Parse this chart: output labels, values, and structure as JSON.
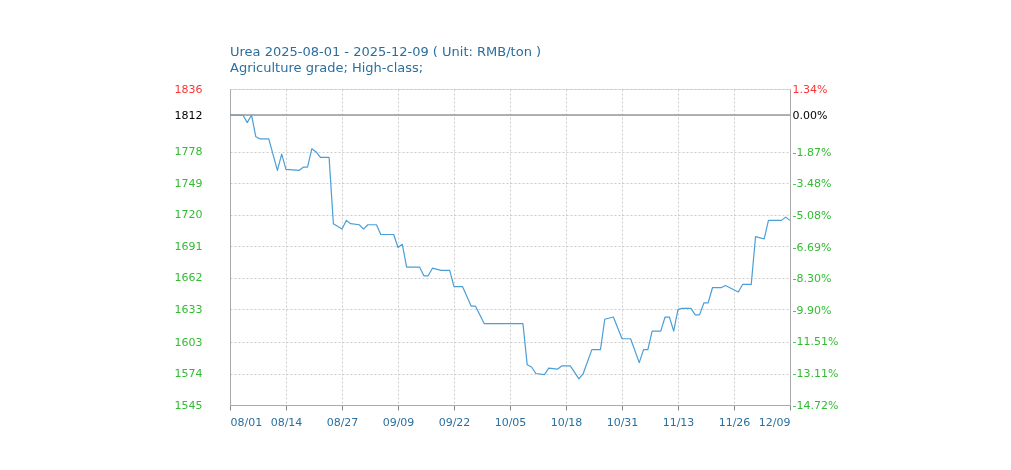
{
  "chart_data": {
    "type": "line",
    "title": "Urea 2025-08-01 - 2025-12-09    ( Unit: RMB/ton )",
    "subtitle": "Agriculture grade; High-class;",
    "x": [
      "2025-08-01",
      "2025-08-04",
      "2025-08-05",
      "2025-08-06",
      "2025-08-07",
      "2025-08-08",
      "2025-08-10",
      "2025-08-12",
      "2025-08-13",
      "2025-08-14",
      "2025-08-17",
      "2025-08-18",
      "2025-08-19",
      "2025-08-20",
      "2025-08-21",
      "2025-08-22",
      "2025-08-24",
      "2025-08-25",
      "2025-08-27",
      "2025-08-28",
      "2025-08-29",
      "2025-08-31",
      "2025-09-01",
      "2025-09-02",
      "2025-09-04",
      "2025-09-05",
      "2025-09-08",
      "2025-09-09",
      "2025-09-10",
      "2025-09-11",
      "2025-09-14",
      "2025-09-15",
      "2025-09-16",
      "2025-09-17",
      "2025-09-19",
      "2025-09-21",
      "2025-09-22",
      "2025-09-24",
      "2025-09-26",
      "2025-09-27",
      "2025-09-29",
      "2025-10-08",
      "2025-10-09",
      "2025-10-10",
      "2025-10-11",
      "2025-10-13",
      "2025-10-14",
      "2025-10-16",
      "2025-10-17",
      "2025-10-19",
      "2025-10-21",
      "2025-10-22",
      "2025-10-24",
      "2025-10-26",
      "2025-10-27",
      "2025-10-29",
      "2025-10-31",
      "2025-11-02",
      "2025-11-04",
      "2025-11-05",
      "2025-11-06",
      "2025-11-07",
      "2025-11-09",
      "2025-11-10",
      "2025-11-11",
      "2025-11-12",
      "2025-11-13",
      "2025-11-14",
      "2025-11-16",
      "2025-11-17",
      "2025-11-18",
      "2025-11-19",
      "2025-11-20",
      "2025-11-21",
      "2025-11-23",
      "2025-11-24",
      "2025-11-27",
      "2025-11-28",
      "2025-11-30",
      "2025-12-01",
      "2025-12-03",
      "2025-12-04",
      "2025-12-07",
      "2025-12-08",
      "2025-12-09"
    ],
    "series": [
      {
        "color": "#4a9fd8",
        "values": [
          1812,
          1812,
          1805,
          1812,
          1792,
          1790,
          1790,
          1761,
          1776,
          1762,
          1761,
          1764,
          1764,
          1781,
          1778,
          1773,
          1773,
          1712,
          1707,
          1715,
          1712,
          1711,
          1707,
          1711,
          1711,
          1702,
          1702,
          1690,
          1693,
          1672,
          1672,
          1664,
          1664,
          1671,
          1669,
          1669,
          1654,
          1654,
          1636,
          1636,
          1620,
          1620,
          1582,
          1580,
          1574,
          1573,
          1579,
          1578,
          1581,
          1581,
          1569,
          1574,
          1596,
          1596,
          1624,
          1626,
          1606,
          1606,
          1584,
          1596,
          1596,
          1613,
          1613,
          1626,
          1626,
          1613,
          1633,
          1634,
          1634,
          1628,
          1628,
          1639,
          1639,
          1653,
          1653,
          1655,
          1649,
          1656,
          1656,
          1700,
          1698,
          1715,
          1715,
          1718,
          1715
        ]
      }
    ],
    "xlim": [
      "2025-08-01",
      "2025-12-09"
    ],
    "xticks": [
      {
        "value": "2025-08-01",
        "label": "08/01"
      },
      {
        "value": "2025-08-14",
        "label": "08/14"
      },
      {
        "value": "2025-08-27",
        "label": "08/27"
      },
      {
        "value": "2025-09-09",
        "label": "09/09"
      },
      {
        "value": "2025-09-22",
        "label": "09/22"
      },
      {
        "value": "2025-10-05",
        "label": "10/05"
      },
      {
        "value": "2025-10-18",
        "label": "10/18"
      },
      {
        "value": "2025-10-31",
        "label": "10/31"
      },
      {
        "value": "2025-11-13",
        "label": "11/13"
      },
      {
        "value": "2025-11-26",
        "label": "11/26"
      },
      {
        "value": "2025-12-09",
        "label": "12/09"
      }
    ],
    "ylim": [
      1545,
      1836
    ],
    "yticks": [
      1545,
      1574,
      1603,
      1633,
      1662,
      1691,
      1720,
      1749,
      1778,
      1812,
      1836
    ],
    "y2lim": [
      -14.72,
      1.34
    ],
    "y2ticks": [
      {
        "value": -14.72,
        "label": "-14.72%"
      },
      {
        "value": -13.11,
        "label": "-13.11%"
      },
      {
        "value": -11.51,
        "label": "-11.51%"
      },
      {
        "value": -9.9,
        "label": "-9.90%"
      },
      {
        "value": -8.3,
        "label": "-8.30%"
      },
      {
        "value": -6.69,
        "label": "-6.69%"
      },
      {
        "value": -5.08,
        "label": "-5.08%"
      },
      {
        "value": -3.48,
        "label": "-3.48%"
      },
      {
        "value": -1.87,
        "label": "-1.87%"
      },
      {
        "value": 0,
        "label": "0.00%"
      },
      {
        "value": 1.34,
        "label": "1.34%"
      }
    ],
    "ref_lines": [
      {
        "axis": "y",
        "value": 1812,
        "color": "#999999"
      }
    ],
    "grid": true,
    "legend": false,
    "marker": "none",
    "line_style": "solid"
  }
}
